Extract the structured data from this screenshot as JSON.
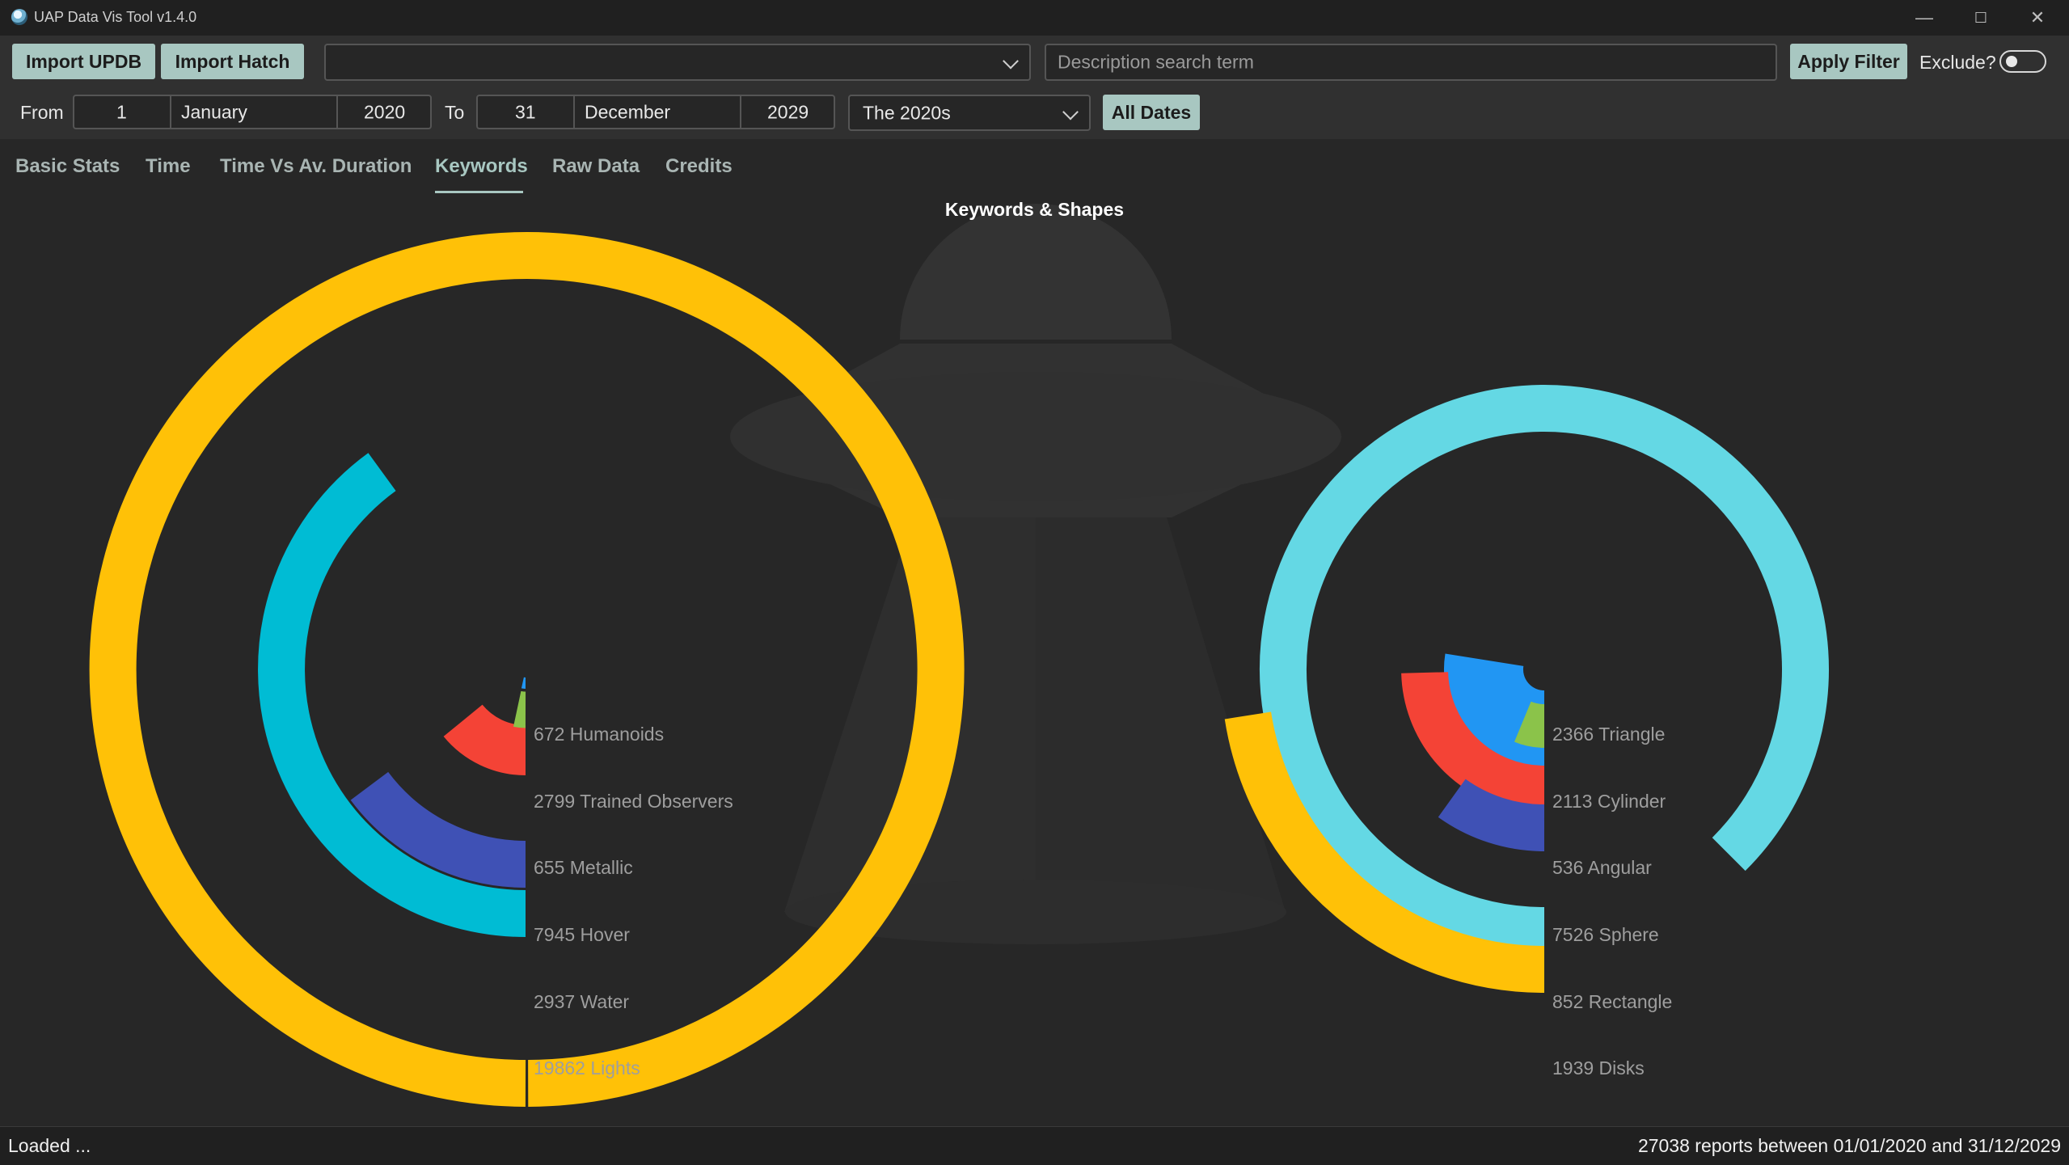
{
  "window": {
    "title": "UAP Data Vis Tool v1.4.0",
    "minimize": "—",
    "maximize": "☐",
    "close": "✕"
  },
  "toolbar": {
    "import_updb": "Import UPDB",
    "import_hatch": "Import Hatch",
    "dataset_select": "",
    "search_placeholder": "Description search term",
    "apply_filter": "Apply Filter",
    "exclude_label": "Exclude?",
    "exclude_on": false
  },
  "dates": {
    "from_label": "From",
    "from_day": "1",
    "from_month": "January",
    "from_year": "2020",
    "to_label": "To",
    "to_day": "31",
    "to_month": "December",
    "to_year": "2029",
    "decade": "The 2020s",
    "all_dates": "All Dates"
  },
  "tabs": [
    {
      "label": "Basic Stats",
      "active": false
    },
    {
      "label": "Time",
      "active": false
    },
    {
      "label": "Time Vs Av. Duration",
      "active": false
    },
    {
      "label": "Keywords",
      "active": true
    },
    {
      "label": "Raw Data",
      "active": false
    },
    {
      "label": "Credits",
      "active": false
    }
  ],
  "chart_data": [
    {
      "type": "radial-bar",
      "title": "Keywords & Shapes",
      "max_value": 19862,
      "series": [
        {
          "name": "Humanoids",
          "value": 672,
          "label": "672 Humanoids",
          "color": "#2196F3"
        },
        {
          "name": "Trained Observers",
          "value": 2799,
          "label": "2799 Trained Observers",
          "color": "#F44336"
        },
        {
          "name": "Metallic",
          "value": 655,
          "label": "655 Metallic",
          "color": "#8BC34A"
        },
        {
          "name": "Hover",
          "value": 7945,
          "label": "7945 Hover",
          "color": "#00BCD4"
        },
        {
          "name": "Water",
          "value": 2937,
          "label": "2937 Water",
          "color": "#3F51B5"
        },
        {
          "name": "Lights",
          "value": 19862,
          "label": "19862 Lights",
          "color": "#FFC107"
        }
      ]
    },
    {
      "type": "radial-bar",
      "max_value": 8600,
      "series": [
        {
          "name": "Triangle",
          "value": 2366,
          "label": "2366 Triangle",
          "color": "#2196F3"
        },
        {
          "name": "Cylinder",
          "value": 2113,
          "label": "2113 Cylinder",
          "color": "#F44336"
        },
        {
          "name": "Angular",
          "value": 536,
          "label": "536 Angular",
          "color": "#8BC34A"
        },
        {
          "name": "Sphere",
          "value": 7526,
          "label": "7526 Sphere",
          "color": "#64D8E4"
        },
        {
          "name": "Rectangle",
          "value": 852,
          "label": "852 Rectangle",
          "color": "#3F51B5"
        },
        {
          "name": "Disks",
          "value": 1939,
          "label": "1939 Disks",
          "color": "#FFC107"
        }
      ]
    }
  ],
  "status": {
    "left": "Loaded ...",
    "right": "27038 reports between 01/01/2020 and 31/12/2029"
  }
}
